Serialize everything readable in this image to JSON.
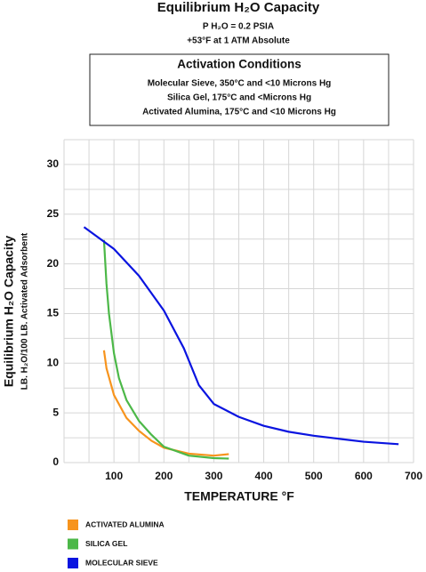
{
  "chart_data": {
    "type": "line",
    "title": "Equilibrium H₂O Capacity",
    "subtitle": [
      "P H₂O = 0.2 PSIA",
      "+53°F at 1 ATM Absolute"
    ],
    "box_title": "Activation Conditions",
    "box_lines": [
      "Molecular Sieve, 350°C and <10 Microns Hg",
      "Silica Gel, 175°C and <Microns Hg",
      "Activated Alumina, 175°C and <10 Microns Hg"
    ],
    "xlabel": "TEMPERATURE °F",
    "ylabel": "Equilibrium H₂O Capacity",
    "ylabel_sub": "LB. H₂O/100 LB. Activated Adsorbent",
    "xlim": [
      0,
      700
    ],
    "ylim": [
      0,
      32.5
    ],
    "xticks": [
      100,
      200,
      300,
      400,
      500,
      600,
      700
    ],
    "yticks": [
      0,
      5,
      10,
      15,
      20,
      25,
      30
    ],
    "xminor": [
      50,
      150,
      250,
      350,
      450,
      550,
      650
    ],
    "yminor": [
      2.5,
      7.5,
      12.5,
      17.5,
      22.5,
      27.5,
      32.5
    ],
    "grid": true,
    "series": [
      {
        "name": "ACTIVATED ALUMINA",
        "color": "#f7941d",
        "x": [
          80,
          85,
          100,
          125,
          150,
          175,
          200,
          250,
          300,
          330
        ],
        "values": [
          11.3,
          9.5,
          6.8,
          4.5,
          3.2,
          2.2,
          1.5,
          0.9,
          0.7,
          0.85
        ]
      },
      {
        "name": "SILICA GEL",
        "color": "#4cb848",
        "x": [
          80,
          85,
          90,
          100,
          110,
          125,
          150,
          175,
          200,
          250,
          300,
          330
        ],
        "values": [
          22.4,
          18,
          15,
          11,
          8.5,
          6.3,
          4.2,
          2.8,
          1.6,
          0.7,
          0.45,
          0.4
        ]
      },
      {
        "name": "MOLECULAR SIEVE",
        "color": "#0a14e0",
        "x": [
          40,
          100,
          150,
          200,
          240,
          270,
          300,
          350,
          400,
          450,
          500,
          550,
          600,
          670
        ],
        "values": [
          23.7,
          21.5,
          18.8,
          15.3,
          11.5,
          7.8,
          5.9,
          4.6,
          3.7,
          3.1,
          2.7,
          2.4,
          2.1,
          1.85
        ]
      }
    ]
  }
}
